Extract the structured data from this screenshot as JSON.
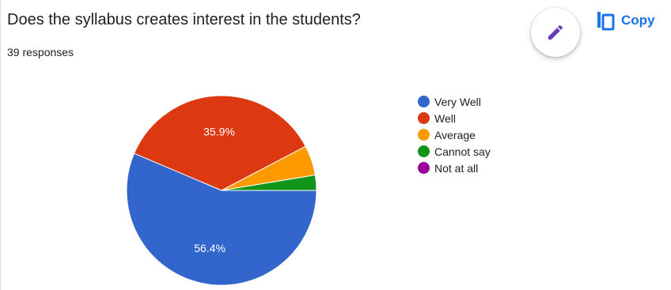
{
  "card": {
    "title": "Does the syllabus creates interest in the students?",
    "responses": "39 responses"
  },
  "actions": {
    "edit_icon": "pencil-icon",
    "copy_icon": "copy-icon",
    "copy_label": "Copy"
  },
  "chart_data": {
    "type": "pie",
    "categories": [
      "Very Well",
      "Well",
      "Average",
      "Cannot say",
      "Not at all"
    ],
    "values": [
      56.4,
      35.9,
      5.1,
      2.6,
      0
    ],
    "labels": [
      "56.4%",
      "35.9%",
      "",
      "",
      ""
    ],
    "colors": [
      "#3366cc",
      "#dc3912",
      "#ff9900",
      "#109618",
      "#990099"
    ],
    "legend_position": "right"
  }
}
